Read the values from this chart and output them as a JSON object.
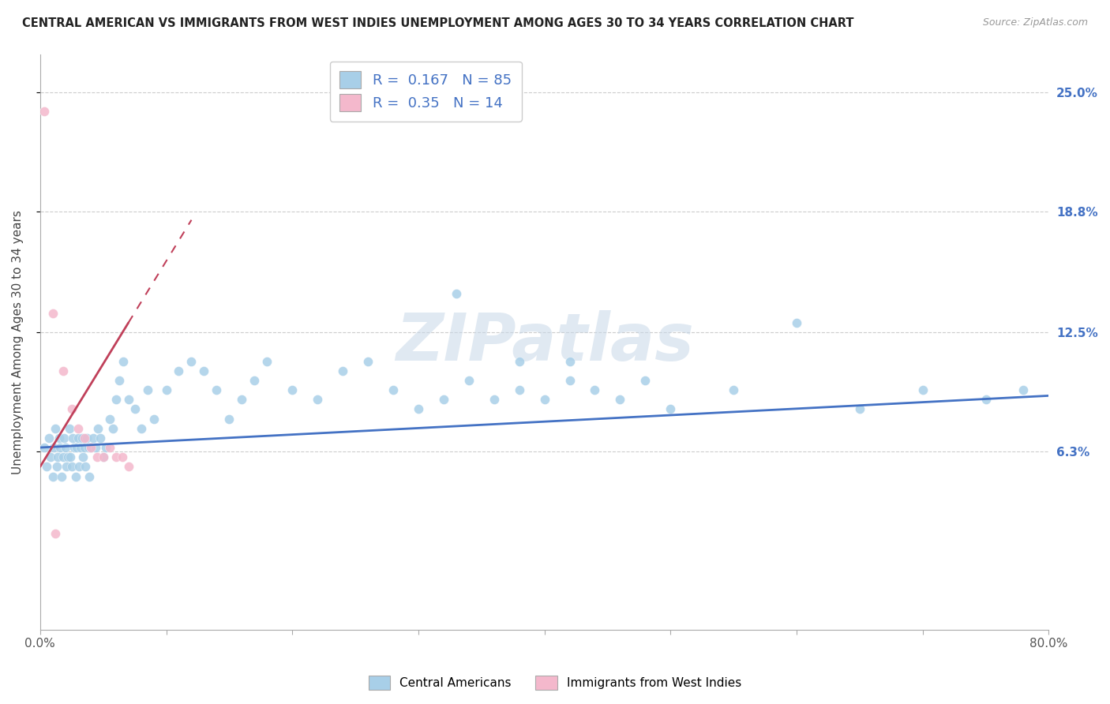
{
  "title": "CENTRAL AMERICAN VS IMMIGRANTS FROM WEST INDIES UNEMPLOYMENT AMONG AGES 30 TO 34 YEARS CORRELATION CHART",
  "source": "Source: ZipAtlas.com",
  "ylabel": "Unemployment Among Ages 30 to 34 years",
  "xlim": [
    0.0,
    80.0
  ],
  "ylim": [
    -3.0,
    27.0
  ],
  "ytick_positions": [
    6.3,
    12.5,
    18.8,
    25.0
  ],
  "ytick_labels": [
    "6.3%",
    "12.5%",
    "18.8%",
    "25.0%"
  ],
  "xtick_labels_edge": [
    "0.0%",
    "80.0%"
  ],
  "blue_color": "#a8cfe8",
  "pink_color": "#f4b8cc",
  "trend_blue": "#4472c4",
  "trend_pink": "#c0405a",
  "R_blue": 0.167,
  "N_blue": 85,
  "R_pink": 0.35,
  "N_pink": 14,
  "watermark": "ZIPatlas",
  "blue_x": [
    0.3,
    0.5,
    0.7,
    0.8,
    1.0,
    1.1,
    1.2,
    1.3,
    1.4,
    1.5,
    1.6,
    1.7,
    1.8,
    1.9,
    2.0,
    2.1,
    2.2,
    2.3,
    2.4,
    2.5,
    2.6,
    2.7,
    2.8,
    2.9,
    3.0,
    3.1,
    3.2,
    3.3,
    3.4,
    3.5,
    3.6,
    3.7,
    3.8,
    3.9,
    4.0,
    4.2,
    4.4,
    4.6,
    4.8,
    5.0,
    5.2,
    5.5,
    5.8,
    6.0,
    6.3,
    6.6,
    7.0,
    7.5,
    8.0,
    8.5,
    9.0,
    10.0,
    11.0,
    12.0,
    13.0,
    14.0,
    15.0,
    16.0,
    17.0,
    18.0,
    20.0,
    22.0,
    24.0,
    26.0,
    28.0,
    30.0,
    32.0,
    34.0,
    36.0,
    38.0,
    40.0,
    42.0,
    44.0,
    46.0,
    48.0,
    50.0,
    55.0,
    60.0,
    65.0,
    70.0,
    75.0,
    78.0,
    33.0,
    38.0,
    42.0
  ],
  "blue_y": [
    6.5,
    5.5,
    7.0,
    6.0,
    5.0,
    6.5,
    7.5,
    5.5,
    6.0,
    7.0,
    6.5,
    5.0,
    6.0,
    7.0,
    6.5,
    5.5,
    6.0,
    7.5,
    6.0,
    5.5,
    7.0,
    6.5,
    5.0,
    6.5,
    7.0,
    5.5,
    6.5,
    7.0,
    6.0,
    6.5,
    5.5,
    7.0,
    6.5,
    5.0,
    6.5,
    7.0,
    6.5,
    7.5,
    7.0,
    6.0,
    6.5,
    8.0,
    7.5,
    9.0,
    10.0,
    11.0,
    9.0,
    8.5,
    7.5,
    9.5,
    8.0,
    9.5,
    10.5,
    11.0,
    10.5,
    9.5,
    8.0,
    9.0,
    10.0,
    11.0,
    9.5,
    9.0,
    10.5,
    11.0,
    9.5,
    8.5,
    9.0,
    10.0,
    9.0,
    9.5,
    9.0,
    10.0,
    9.5,
    9.0,
    10.0,
    8.5,
    9.5,
    13.0,
    8.5,
    9.5,
    9.0,
    9.5,
    14.5,
    11.0,
    11.0
  ],
  "pink_x": [
    0.3,
    1.0,
    1.8,
    2.5,
    3.0,
    3.5,
    4.0,
    4.5,
    5.0,
    5.5,
    6.0,
    6.5,
    7.0,
    1.2
  ],
  "pink_y": [
    24.0,
    13.5,
    10.5,
    8.5,
    7.5,
    7.0,
    6.5,
    6.0,
    6.0,
    6.5,
    6.0,
    6.0,
    5.5,
    2.0
  ],
  "pink_trend_x0": 0.0,
  "pink_trend_y0": 5.5,
  "pink_trend_x1": 7.0,
  "pink_trend_y1": 13.0,
  "blue_trend_x0": 0.0,
  "blue_trend_y0": 6.5,
  "blue_trend_x1": 80.0,
  "blue_trend_y1": 9.2
}
